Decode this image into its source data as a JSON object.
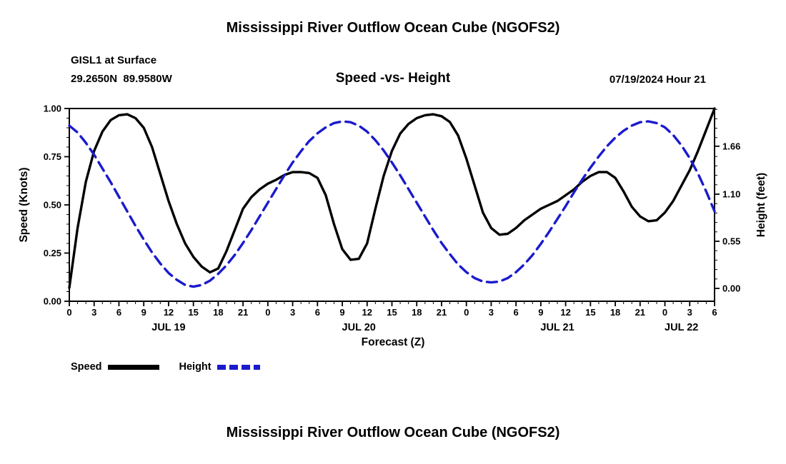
{
  "page": {
    "title_top": "Mississippi River Outflow Ocean Cube (NGOFS2)",
    "title_bottom": "Mississippi River Outflow Ocean Cube (NGOFS2)"
  },
  "header": {
    "station_line1": "GISL1 at Surface",
    "station_line2": "29.2650N  89.9580W",
    "plot_title": "Speed -vs- Height",
    "datetime": "07/19/2024 Hour 21"
  },
  "legend": {
    "speed_label": "Speed",
    "height_label": "Height"
  },
  "colors": {
    "speed": "#000000",
    "height": "#1a1acd"
  },
  "chart_data": {
    "type": "line",
    "title": "Mississippi River Outflow Ocean Cube (NGOFS2)",
    "subtitle": "Speed -vs- Height",
    "x": {
      "unit": "hours",
      "start_hour": 0,
      "end_hour": 78,
      "major_tick_step": 3,
      "minor_tick_step": 1,
      "tick_labels": [
        "0",
        "3",
        "6",
        "9",
        "12",
        "15",
        "18",
        "21",
        "0",
        "3",
        "6",
        "9",
        "12",
        "15",
        "18",
        "21",
        "0",
        "3",
        "6",
        "9",
        "12",
        "15",
        "18",
        "21",
        "0",
        "3",
        "6"
      ],
      "date_labels": [
        {
          "label": "JUL 19",
          "hour": 12
        },
        {
          "label": "JUL 20",
          "hour": 35
        },
        {
          "label": "JUL 21",
          "hour": 59
        },
        {
          "label": "JUL 22",
          "hour": 74
        }
      ],
      "axis_label": "Forecast (Z)"
    },
    "left_axis": {
      "label": "Speed (Knots)",
      "range": [
        0,
        1.0
      ],
      "tick_values": [
        0,
        0.25,
        0.5,
        0.75,
        1.0
      ],
      "tick_labels": [
        "0.00",
        "0.25",
        "0.50",
        "0.75",
        "1.00"
      ],
      "minor_step": 0.05
    },
    "right_axis": {
      "label": "Height (feet)",
      "range_feet": [
        -0.15,
        2.1
      ],
      "tick_values": [
        0,
        0.55,
        1.1,
        1.66
      ],
      "tick_labels": [
        "0.00",
        "0.55",
        "1.10",
        "1.66"
      ],
      "minor_step": 0.11
    },
    "series": [
      {
        "name": "Speed",
        "axis": "left",
        "color": "#000000",
        "line_style": "solid",
        "x_hours_step": 1,
        "values": [
          0.07,
          0.38,
          0.62,
          0.78,
          0.88,
          0.94,
          0.965,
          0.97,
          0.95,
          0.9,
          0.8,
          0.66,
          0.52,
          0.4,
          0.3,
          0.23,
          0.18,
          0.15,
          0.17,
          0.26,
          0.37,
          0.48,
          0.54,
          0.58,
          0.61,
          0.63,
          0.655,
          0.67,
          0.67,
          0.665,
          0.64,
          0.55,
          0.4,
          0.27,
          0.215,
          0.22,
          0.3,
          0.48,
          0.65,
          0.78,
          0.87,
          0.92,
          0.95,
          0.965,
          0.97,
          0.96,
          0.93,
          0.86,
          0.74,
          0.6,
          0.46,
          0.38,
          0.345,
          0.35,
          0.38,
          0.42,
          0.45,
          0.48,
          0.5,
          0.52,
          0.55,
          0.58,
          0.62,
          0.65,
          0.67,
          0.67,
          0.64,
          0.57,
          0.49,
          0.44,
          0.415,
          0.42,
          0.46,
          0.52,
          0.6,
          0.68,
          0.78,
          0.89,
          1.0
        ]
      },
      {
        "name": "Height",
        "axis": "right",
        "color": "#1a1acd",
        "line_style": "dashed",
        "x_hours_step": 1,
        "values": [
          1.9,
          1.82,
          1.7,
          1.56,
          1.4,
          1.24,
          1.07,
          0.9,
          0.73,
          0.57,
          0.42,
          0.29,
          0.18,
          0.1,
          0.04,
          0.02,
          0.04,
          0.09,
          0.17,
          0.27,
          0.39,
          0.53,
          0.68,
          0.84,
          1.0,
          1.16,
          1.32,
          1.47,
          1.6,
          1.72,
          1.81,
          1.88,
          1.93,
          1.95,
          1.94,
          1.9,
          1.83,
          1.73,
          1.61,
          1.47,
          1.32,
          1.16,
          1.0,
          0.84,
          0.68,
          0.53,
          0.4,
          0.28,
          0.19,
          0.12,
          0.08,
          0.07,
          0.08,
          0.12,
          0.19,
          0.28,
          0.39,
          0.52,
          0.66,
          0.81,
          0.96,
          1.12,
          1.27,
          1.41,
          1.54,
          1.66,
          1.76,
          1.84,
          1.9,
          1.94,
          1.95,
          1.93,
          1.88,
          1.79,
          1.67,
          1.52,
          1.34,
          1.13,
          0.9
        ]
      }
    ]
  }
}
